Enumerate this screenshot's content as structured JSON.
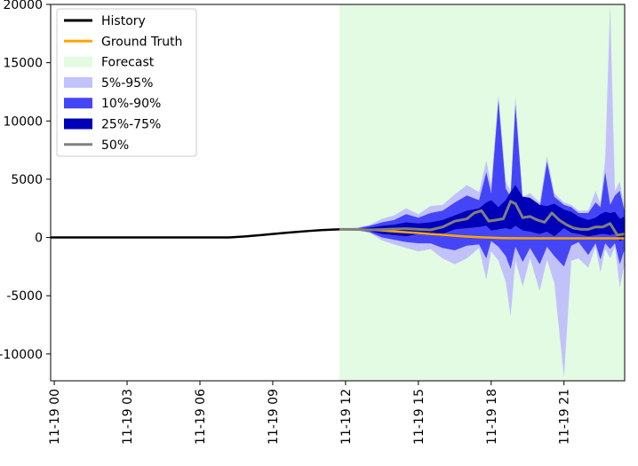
{
  "chart_data": {
    "type": "area",
    "title": "",
    "xlabel": "",
    "ylabel": "",
    "x_ticks": [
      "11-19 00",
      "11-19 03",
      "11-19 06",
      "11-19 09",
      "11-19 12",
      "11-19 15",
      "11-19 18",
      "11-19 21"
    ],
    "y_ticks": [
      "20000",
      "15000",
      "10000",
      "5000",
      "0",
      "-5000",
      "-10000"
    ],
    "xlim_hours": [
      -0.15,
      23.5
    ],
    "ylim": [
      -12300,
      20000
    ],
    "grid": false,
    "legend_position": "top-left",
    "forecast_region_hours": [
      11.75,
      23.5
    ],
    "legend": [
      {
        "label": "History",
        "kind": "line",
        "color": "#000000"
      },
      {
        "label": "Ground Truth",
        "kind": "line",
        "color": "#ffa500"
      },
      {
        "label": "Forecast",
        "kind": "patch",
        "color": "#e2fbe2"
      },
      {
        "label": "5%-95%",
        "kind": "patch",
        "color": "#c2c2fb"
      },
      {
        "label": "10%-90%",
        "kind": "patch",
        "color": "#4545f8"
      },
      {
        "label": "25%-75%",
        "kind": "patch",
        "color": "#0000b8"
      },
      {
        "label": "50%",
        "kind": "line",
        "color": "#808080"
      }
    ],
    "series": [
      {
        "name": "History",
        "color": "#000000",
        "hours": [
          -0.15,
          7.2,
          7.8,
          8.5,
          9.0,
          9.5,
          10.0,
          10.5,
          11.0,
          11.5,
          11.75
        ],
        "values": [
          0,
          0,
          80,
          200,
          300,
          390,
          480,
          560,
          630,
          680,
          700
        ]
      },
      {
        "name": "Ground Truth",
        "color": "#ffa500",
        "hours": [
          11.75,
          12.5,
          13.0,
          13.5,
          14.0,
          14.5,
          15.0,
          15.5,
          16.0,
          16.5,
          17.0,
          17.5,
          18.0,
          18.5,
          19.0,
          20.0,
          21.0,
          22.0,
          23.5
        ],
        "values": [
          700,
          680,
          660,
          600,
          520,
          450,
          380,
          300,
          230,
          150,
          80,
          20,
          -20,
          -50,
          -60,
          -70,
          -70,
          -70,
          -70
        ]
      },
      {
        "name": "50%",
        "color": "#808080",
        "hours": [
          11.75,
          12.0,
          12.5,
          13.0,
          13.5,
          14.0,
          14.5,
          15.0,
          15.5,
          16.0,
          16.5,
          17.0,
          17.3,
          17.6,
          17.9,
          18.2,
          18.5,
          18.8,
          19.0,
          19.3,
          19.6,
          19.9,
          20.2,
          20.5,
          20.8,
          21.1,
          21.4,
          21.7,
          22.0,
          22.3,
          22.6,
          22.9,
          23.2,
          23.5
        ],
        "values": [
          700,
          700,
          690,
          650,
          680,
          730,
          760,
          700,
          650,
          900,
          1400,
          1600,
          2100,
          2300,
          1400,
          1500,
          1600,
          3100,
          2900,
          1700,
          1800,
          1500,
          1300,
          2100,
          1500,
          1100,
          800,
          700,
          700,
          900,
          900,
          1200,
          200,
          300
        ]
      }
    ],
    "bands": {
      "hours": [
        11.75,
        12.5,
        13.0,
        13.5,
        14.0,
        14.5,
        15.0,
        15.5,
        16.0,
        16.5,
        17.0,
        17.5,
        17.8,
        18.0,
        18.3,
        18.6,
        18.8,
        19.0,
        19.3,
        19.6,
        20.0,
        20.3,
        20.6,
        21.0,
        21.3,
        21.6,
        22.0,
        22.3,
        22.5,
        22.7,
        22.9,
        23.1,
        23.3,
        23.5
      ],
      "p05": [
        640,
        580,
        400,
        -250,
        -600,
        -900,
        -1200,
        -1000,
        -1800,
        -2300,
        -1800,
        -900,
        -3600,
        -1200,
        -2000,
        -3800,
        -6800,
        -2000,
        -4200,
        -1800,
        -4600,
        -1900,
        -3900,
        -12000,
        -2000,
        -1800,
        -2600,
        -800,
        -3000,
        -1000,
        -1800,
        -800,
        -4300,
        -2200
      ],
      "p10": [
        660,
        620,
        450,
        0,
        -200,
        -400,
        -500,
        -500,
        -900,
        -1100,
        -700,
        -600,
        -1800,
        -300,
        -800,
        -1600,
        -2700,
        -800,
        -2100,
        -900,
        -2300,
        -800,
        -1600,
        -2500,
        -700,
        -400,
        -1500,
        -500,
        -1900,
        -500,
        -1000,
        -500,
        -2300,
        -1000
      ],
      "p25": [
        680,
        650,
        550,
        300,
        200,
        100,
        300,
        200,
        300,
        700,
        800,
        900,
        1000,
        600,
        700,
        800,
        700,
        1000,
        600,
        500,
        300,
        500,
        100,
        800,
        400,
        300,
        100,
        200,
        300,
        300,
        200,
        300,
        -300,
        -100
      ],
      "p75": [
        720,
        760,
        850,
        1000,
        1100,
        1300,
        1200,
        1300,
        1500,
        1900,
        2300,
        2500,
        3000,
        3200,
        2600,
        3200,
        3900,
        4500,
        3500,
        3400,
        2800,
        2700,
        2900,
        2400,
        2200,
        1800,
        1500,
        1700,
        2000,
        2200,
        2100,
        2200,
        1600,
        1800
      ],
      "p90": [
        740,
        800,
        1000,
        1300,
        1500,
        2000,
        1700,
        2100,
        2300,
        3000,
        3600,
        3200,
        5600,
        3800,
        11800,
        4200,
        3500,
        11400,
        3100,
        3400,
        2500,
        6500,
        3500,
        2800,
        2600,
        2100,
        2100,
        3000,
        2600,
        5600,
        2800,
        3600,
        4000,
        2200
      ],
      "p95": [
        760,
        850,
        1100,
        1600,
        1900,
        2500,
        2000,
        2700,
        2800,
        3700,
        4500,
        3900,
        6600,
        4500,
        12200,
        4800,
        4000,
        12100,
        3500,
        3800,
        3000,
        7000,
        3800,
        3000,
        2800,
        2300,
        2300,
        4000,
        2900,
        6800,
        20000,
        4000,
        4800,
        2500
      ]
    }
  }
}
